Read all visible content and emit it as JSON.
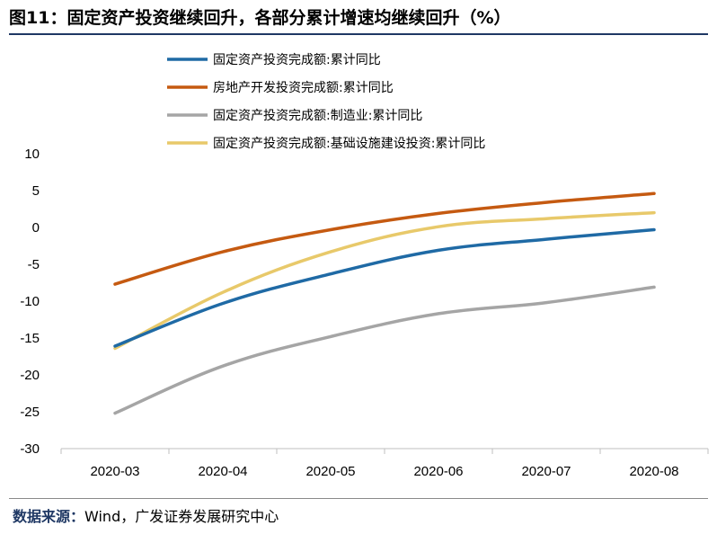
{
  "title": "图11：固定资产投资继续回升，各部分累计增速均继续回升（%）",
  "source": {
    "label": "数据来源：",
    "text": "Wind，广发证券发展研究中心"
  },
  "colors": {
    "fixed_asset": "#1f6aa5",
    "real_estate": "#c55a11",
    "manufacturing": "#a5a5a5",
    "infrastructure": "#e8c96a"
  },
  "chart_data": {
    "type": "line",
    "title": "",
    "xlabel": "",
    "ylabel": "",
    "categories": [
      "2020-03",
      "2020-04",
      "2020-05",
      "2020-06",
      "2020-07",
      "2020-08"
    ],
    "ylim": [
      -30,
      10
    ],
    "yticks": [
      10,
      5,
      0,
      -5,
      -10,
      -15,
      -20,
      -25,
      -30
    ],
    "grid": false,
    "legend_position": "top",
    "series": [
      {
        "name": "固定资产投资完成额:累计同比",
        "color": "#1f6aa5",
        "values": [
          -16.1,
          -10.3,
          -6.3,
          -3.1,
          -1.6,
          -0.3
        ]
      },
      {
        "name": "房地产开发投资完成额:累计同比",
        "color": "#c55a11",
        "values": [
          -7.7,
          -3.3,
          -0.3,
          1.9,
          3.4,
          4.6
        ]
      },
      {
        "name": "固定资产投资完成额:制造业:累计同比",
        "color": "#a5a5a5",
        "values": [
          -25.2,
          -18.8,
          -14.8,
          -11.7,
          -10.2,
          -8.1
        ]
      },
      {
        "name": "固定资产投资完成额:基础设施建设投资:累计同比",
        "color": "#e8c96a",
        "values": [
          -16.4,
          -8.8,
          -3.3,
          0.1,
          1.2,
          2.0
        ]
      }
    ]
  }
}
